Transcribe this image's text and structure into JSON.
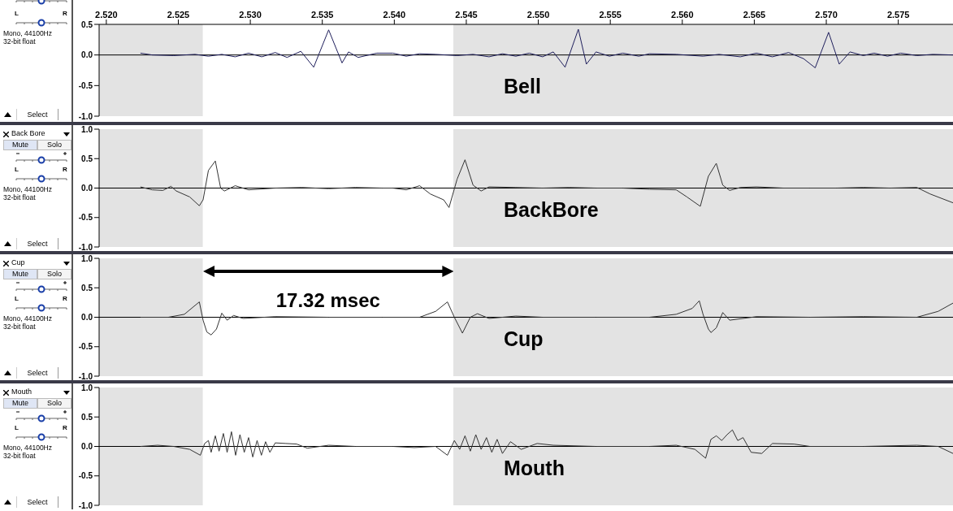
{
  "chart_data": [
    {
      "type": "line",
      "xlim": [
        2.5195,
        2.5788
      ],
      "xticks": [
        {
          "value": 2.52,
          "label": "2.520"
        },
        {
          "value": 2.525,
          "label": "2.525"
        },
        {
          "value": 2.53,
          "label": "2.530"
        },
        {
          "value": 2.535,
          "label": "2.535"
        },
        {
          "value": 2.54,
          "label": "2.540"
        },
        {
          "value": 2.545,
          "label": "2.545"
        },
        {
          "value": 2.55,
          "label": "2.550"
        },
        {
          "value": 2.555,
          "label": "2.555"
        },
        {
          "value": 2.56,
          "label": "2.560"
        },
        {
          "value": 2.565,
          "label": "2.565"
        },
        {
          "value": 2.57,
          "label": "2.570"
        },
        {
          "value": 2.575,
          "label": "2.575"
        }
      ],
      "ylim": [
        -1,
        0.5
      ],
      "yticks": [
        {
          "value": 0.5,
          "label": "0.5"
        },
        {
          "value": 0,
          "label": "0.0"
        },
        {
          "value": -0.5,
          "label": "-0.5"
        },
        {
          "value": -1,
          "label": "-1.0"
        }
      ],
      "x": [
        2.52237,
        2.52319,
        2.52468,
        2.52616,
        2.52709,
        2.52802,
        2.52895,
        2.52988,
        2.5308,
        2.53173,
        2.53255,
        2.53351,
        2.5344,
        2.53544,
        2.53637,
        2.53682,
        2.53749,
        2.53879,
        2.5399,
        2.54083,
        2.54176,
        2.54287,
        2.54436,
        2.54547,
        2.54658,
        2.54751,
        2.54844,
        2.54937,
        2.5503,
        2.55104,
        2.55186,
        2.55278,
        2.55334,
        2.55401,
        2.55494,
        2.55587,
        2.55698,
        2.55772,
        2.55958,
        2.56144,
        2.56255,
        2.56403,
        2.56515,
        2.56626,
        2.56738,
        2.56842,
        2.56923,
        2.57016,
        2.5709,
        2.57165,
        2.57257,
        2.57332,
        2.57425,
        2.57517,
        2.57629,
        2.5774,
        2.5788
      ],
      "series": [
        {
          "color": "#1f1f5c",
          "values": [
            0.03,
            0.0,
            -0.01,
            0.01,
            -0.02,
            0.01,
            -0.03,
            0.03,
            -0.03,
            0.04,
            -0.04,
            0.06,
            -0.2,
            0.41,
            -0.13,
            0.05,
            -0.04,
            0.03,
            0.03,
            -0.02,
            0.02,
            0.01,
            -0.01,
            0.01,
            -0.03,
            0.02,
            -0.02,
            0.03,
            -0.03,
            0.05,
            -0.2,
            0.42,
            -0.15,
            0.05,
            -0.02,
            0.03,
            -0.02,
            0.02,
            0.01,
            -0.02,
            0.01,
            -0.03,
            0.03,
            -0.03,
            0.04,
            -0.06,
            -0.21,
            0.37,
            -0.15,
            0.05,
            -0.01,
            0.03,
            -0.02,
            0.03,
            -0.01,
            0.01,
            0.0
          ]
        }
      ],
      "bands": [
        {
          "axis": "x",
          "from": 2.5195,
          "to": 2.5267,
          "color": "#e3e3e3"
        },
        {
          "axis": "x",
          "from": 2.5441,
          "to": 2.5788,
          "color": "#e3e3e3"
        }
      ],
      "ref_lines": [
        {
          "axis": "y",
          "value": 0,
          "color": "#000000"
        }
      ],
      "annotations": [
        "Bell",
        "L",
        "R",
        "Mono, 44100Hz",
        "32-bit float",
        "Select"
      ]
    },
    {
      "type": "line",
      "tick_labels": "y",
      "xlim": [
        2.5195,
        2.5788
      ],
      "ylim": [
        -1,
        1
      ],
      "yticks": [
        {
          "value": 1,
          "label": "1.0"
        },
        {
          "value": 0.5,
          "label": "0.5"
        },
        {
          "value": 0,
          "label": "0.0"
        },
        {
          "value": -0.5,
          "label": "-0.5"
        },
        {
          "value": -1,
          "label": "-1.0"
        }
      ],
      "x": [
        2.52237,
        2.52319,
        2.52393,
        2.52449,
        2.52486,
        2.52579,
        2.52646,
        2.52672,
        2.52709,
        2.52757,
        2.52794,
        2.5282,
        2.52895,
        2.52988,
        2.53173,
        2.53359,
        2.53544,
        2.5373,
        2.53916,
        2.5399,
        2.54083,
        2.54176,
        2.5425,
        2.54343,
        2.5438,
        2.54436,
        2.54491,
        2.54547,
        2.54603,
        2.54658,
        2.54844,
        2.5503,
        2.55215,
        2.55401,
        2.55587,
        2.55772,
        2.55958,
        2.56032,
        2.56125,
        2.56181,
        2.56236,
        2.56281,
        2.56329,
        2.56403,
        2.56515,
        2.56701,
        2.56886,
        2.57072,
        2.57257,
        2.57443,
        2.57629,
        2.57721,
        2.5788
      ],
      "series": [
        {
          "color": "#333333",
          "values": [
            0.02,
            -0.03,
            -0.04,
            0.03,
            -0.05,
            -0.15,
            -0.3,
            -0.2,
            0.3,
            0.46,
            0.0,
            -0.05,
            0.04,
            -0.03,
            0.0,
            0.01,
            -0.01,
            0.01,
            0.0,
            0.0,
            -0.03,
            0.04,
            -0.1,
            -0.2,
            -0.33,
            0.15,
            0.48,
            0.05,
            -0.05,
            0.02,
            0.01,
            0.0,
            0.01,
            0.0,
            0.0,
            -0.02,
            -0.03,
            -0.15,
            -0.31,
            0.2,
            0.42,
            0.05,
            -0.04,
            0.01,
            0.02,
            0.0,
            0.0,
            0.0,
            0.01,
            0.0,
            0.01,
            -0.1,
            -0.25
          ]
        }
      ],
      "bands": [
        {
          "axis": "x",
          "from": 2.5195,
          "to": 2.5267,
          "color": "#e3e3e3"
        },
        {
          "axis": "x",
          "from": 2.5441,
          "to": 2.5788,
          "color": "#e3e3e3"
        }
      ],
      "ref_lines": [
        {
          "axis": "y",
          "value": 0,
          "color": "#000000"
        }
      ],
      "annotations": [
        "BackBore",
        "Back Bore",
        "Mute",
        "Solo",
        "L",
        "R",
        "Mono, 44100Hz",
        "32-bit float",
        "Select"
      ]
    },
    {
      "type": "line",
      "tick_labels": "y",
      "xlim": [
        2.5195,
        2.5788
      ],
      "ylim": [
        -1,
        1
      ],
      "yticks": [
        {
          "value": 1,
          "label": "1.0"
        },
        {
          "value": 0.5,
          "label": "0.5"
        },
        {
          "value": 0,
          "label": "0.0"
        },
        {
          "value": -0.5,
          "label": "-0.5"
        },
        {
          "value": -1,
          "label": "-1.0"
        }
      ],
      "x": [
        2.52237,
        2.52431,
        2.52542,
        2.52616,
        2.52646,
        2.52672,
        2.52698,
        2.52728,
        2.52765,
        2.52802,
        2.52839,
        2.52884,
        2.5295,
        2.53173,
        2.53544,
        2.53916,
        2.54176,
        2.54287,
        2.54369,
        2.54417,
        2.54473,
        2.54528,
        2.54577,
        2.54658,
        2.54844,
        2.5503,
        2.55401,
        2.55772,
        2.55958,
        2.56069,
        2.56118,
        2.56144,
        2.56181,
        2.56199,
        2.56236,
        2.56281,
        2.56329,
        2.56515,
        2.56886,
        2.57257,
        2.57629,
        2.57777,
        2.5788
      ],
      "series": [
        {
          "color": "#333333",
          "values": [
            0.0,
            0.0,
            0.05,
            0.2,
            0.26,
            -0.05,
            -0.25,
            -0.3,
            -0.2,
            0.07,
            -0.05,
            0.03,
            -0.02,
            0.01,
            0.0,
            0.0,
            0.0,
            0.1,
            0.26,
            0.0,
            -0.27,
            0.0,
            0.06,
            -0.02,
            0.02,
            0.0,
            0.0,
            0.0,
            0.05,
            0.15,
            0.28,
            0.05,
            -0.2,
            -0.26,
            -0.18,
            0.08,
            -0.05,
            0.01,
            0.0,
            0.01,
            0.0,
            0.1,
            0.24
          ]
        }
      ],
      "bands": [
        {
          "axis": "x",
          "from": 2.5195,
          "to": 2.5267,
          "color": "#e3e3e3"
        },
        {
          "axis": "x",
          "from": 2.5441,
          "to": 2.5788,
          "color": "#e3e3e3"
        }
      ],
      "ref_lines": [
        {
          "axis": "y",
          "value": 0,
          "color": "#000000"
        }
      ],
      "annotations": [
        "Cup",
        "17.32 msec",
        "Cup",
        "Mute",
        "Solo",
        "L",
        "R",
        "Mono, 44100Hz",
        "32-bit float",
        "Select"
      ]
    },
    {
      "type": "line",
      "tick_labels": "y",
      "xlim": [
        2.5195,
        2.5788
      ],
      "ylim": [
        -1,
        1
      ],
      "yticks": [
        {
          "value": 1,
          "label": "1.0"
        },
        {
          "value": 0.5,
          "label": "0.5"
        },
        {
          "value": 0,
          "label": "0.0"
        },
        {
          "value": -0.5,
          "label": "-0.5"
        },
        {
          "value": -1,
          "label": "-1.0"
        }
      ],
      "x": [
        2.52237,
        2.52356,
        2.52468,
        2.52579,
        2.52653,
        2.52683,
        2.52709,
        2.52728,
        2.52757,
        2.52783,
        2.52813,
        2.52839,
        2.52869,
        2.52898,
        2.52928,
        2.52958,
        2.52988,
        2.53017,
        2.53047,
        2.53077,
        2.53106,
        2.53136,
        2.53173,
        2.53247,
        2.53322,
        2.53396,
        2.53544,
        2.5373,
        2.5399,
        2.54139,
        2.54287,
        2.54369,
        2.54417,
        2.54454,
        2.54491,
        2.54528,
        2.54566,
        2.54603,
        2.5464,
        2.54677,
        2.54714,
        2.54751,
        2.54807,
        2.54881,
        2.54992,
        2.55104,
        2.55401,
        2.55772,
        2.55958,
        2.56088,
        2.56162,
        2.56199,
        2.56236,
        2.56274,
        2.56311,
        2.56348,
        2.56385,
        2.56422,
        2.56478,
        2.56552,
        2.56626,
        2.56775,
        2.56886,
        2.57257,
        2.57629,
        2.57777,
        2.5788
      ],
      "series": [
        {
          "color": "#333333",
          "values": [
            0.0,
            0.02,
            0.0,
            -0.05,
            -0.15,
            0.05,
            0.1,
            -0.1,
            0.18,
            -0.08,
            0.22,
            -0.1,
            0.25,
            -0.15,
            0.2,
            -0.1,
            0.15,
            -0.18,
            0.1,
            -0.15,
            0.08,
            -0.1,
            0.06,
            0.05,
            0.04,
            -0.03,
            0.02,
            0.0,
            0.0,
            -0.02,
            0.0,
            -0.15,
            0.1,
            -0.05,
            0.18,
            -0.08,
            0.2,
            -0.05,
            0.15,
            -0.1,
            0.12,
            -0.12,
            0.08,
            -0.05,
            0.05,
            0.02,
            0.0,
            0.0,
            0.02,
            -0.05,
            -0.2,
            0.12,
            0.18,
            0.1,
            0.2,
            0.28,
            0.1,
            0.15,
            -0.1,
            -0.12,
            0.05,
            0.04,
            0.0,
            0.0,
            0.02,
            0.0,
            -0.12
          ]
        }
      ],
      "bands": [
        {
          "axis": "x",
          "from": 2.5195,
          "to": 2.5267,
          "color": "#e3e3e3"
        },
        {
          "axis": "x",
          "from": 2.5441,
          "to": 2.5788,
          "color": "#e3e3e3"
        }
      ],
      "ref_lines": [
        {
          "axis": "y",
          "value": 0,
          "color": "#000000"
        }
      ],
      "annotations": [
        "Mouth",
        "Mouth",
        "Mute",
        "Solo",
        "L",
        "R",
        "Mono, 44100Hz",
        "32-bit float",
        "Select"
      ]
    }
  ]
}
